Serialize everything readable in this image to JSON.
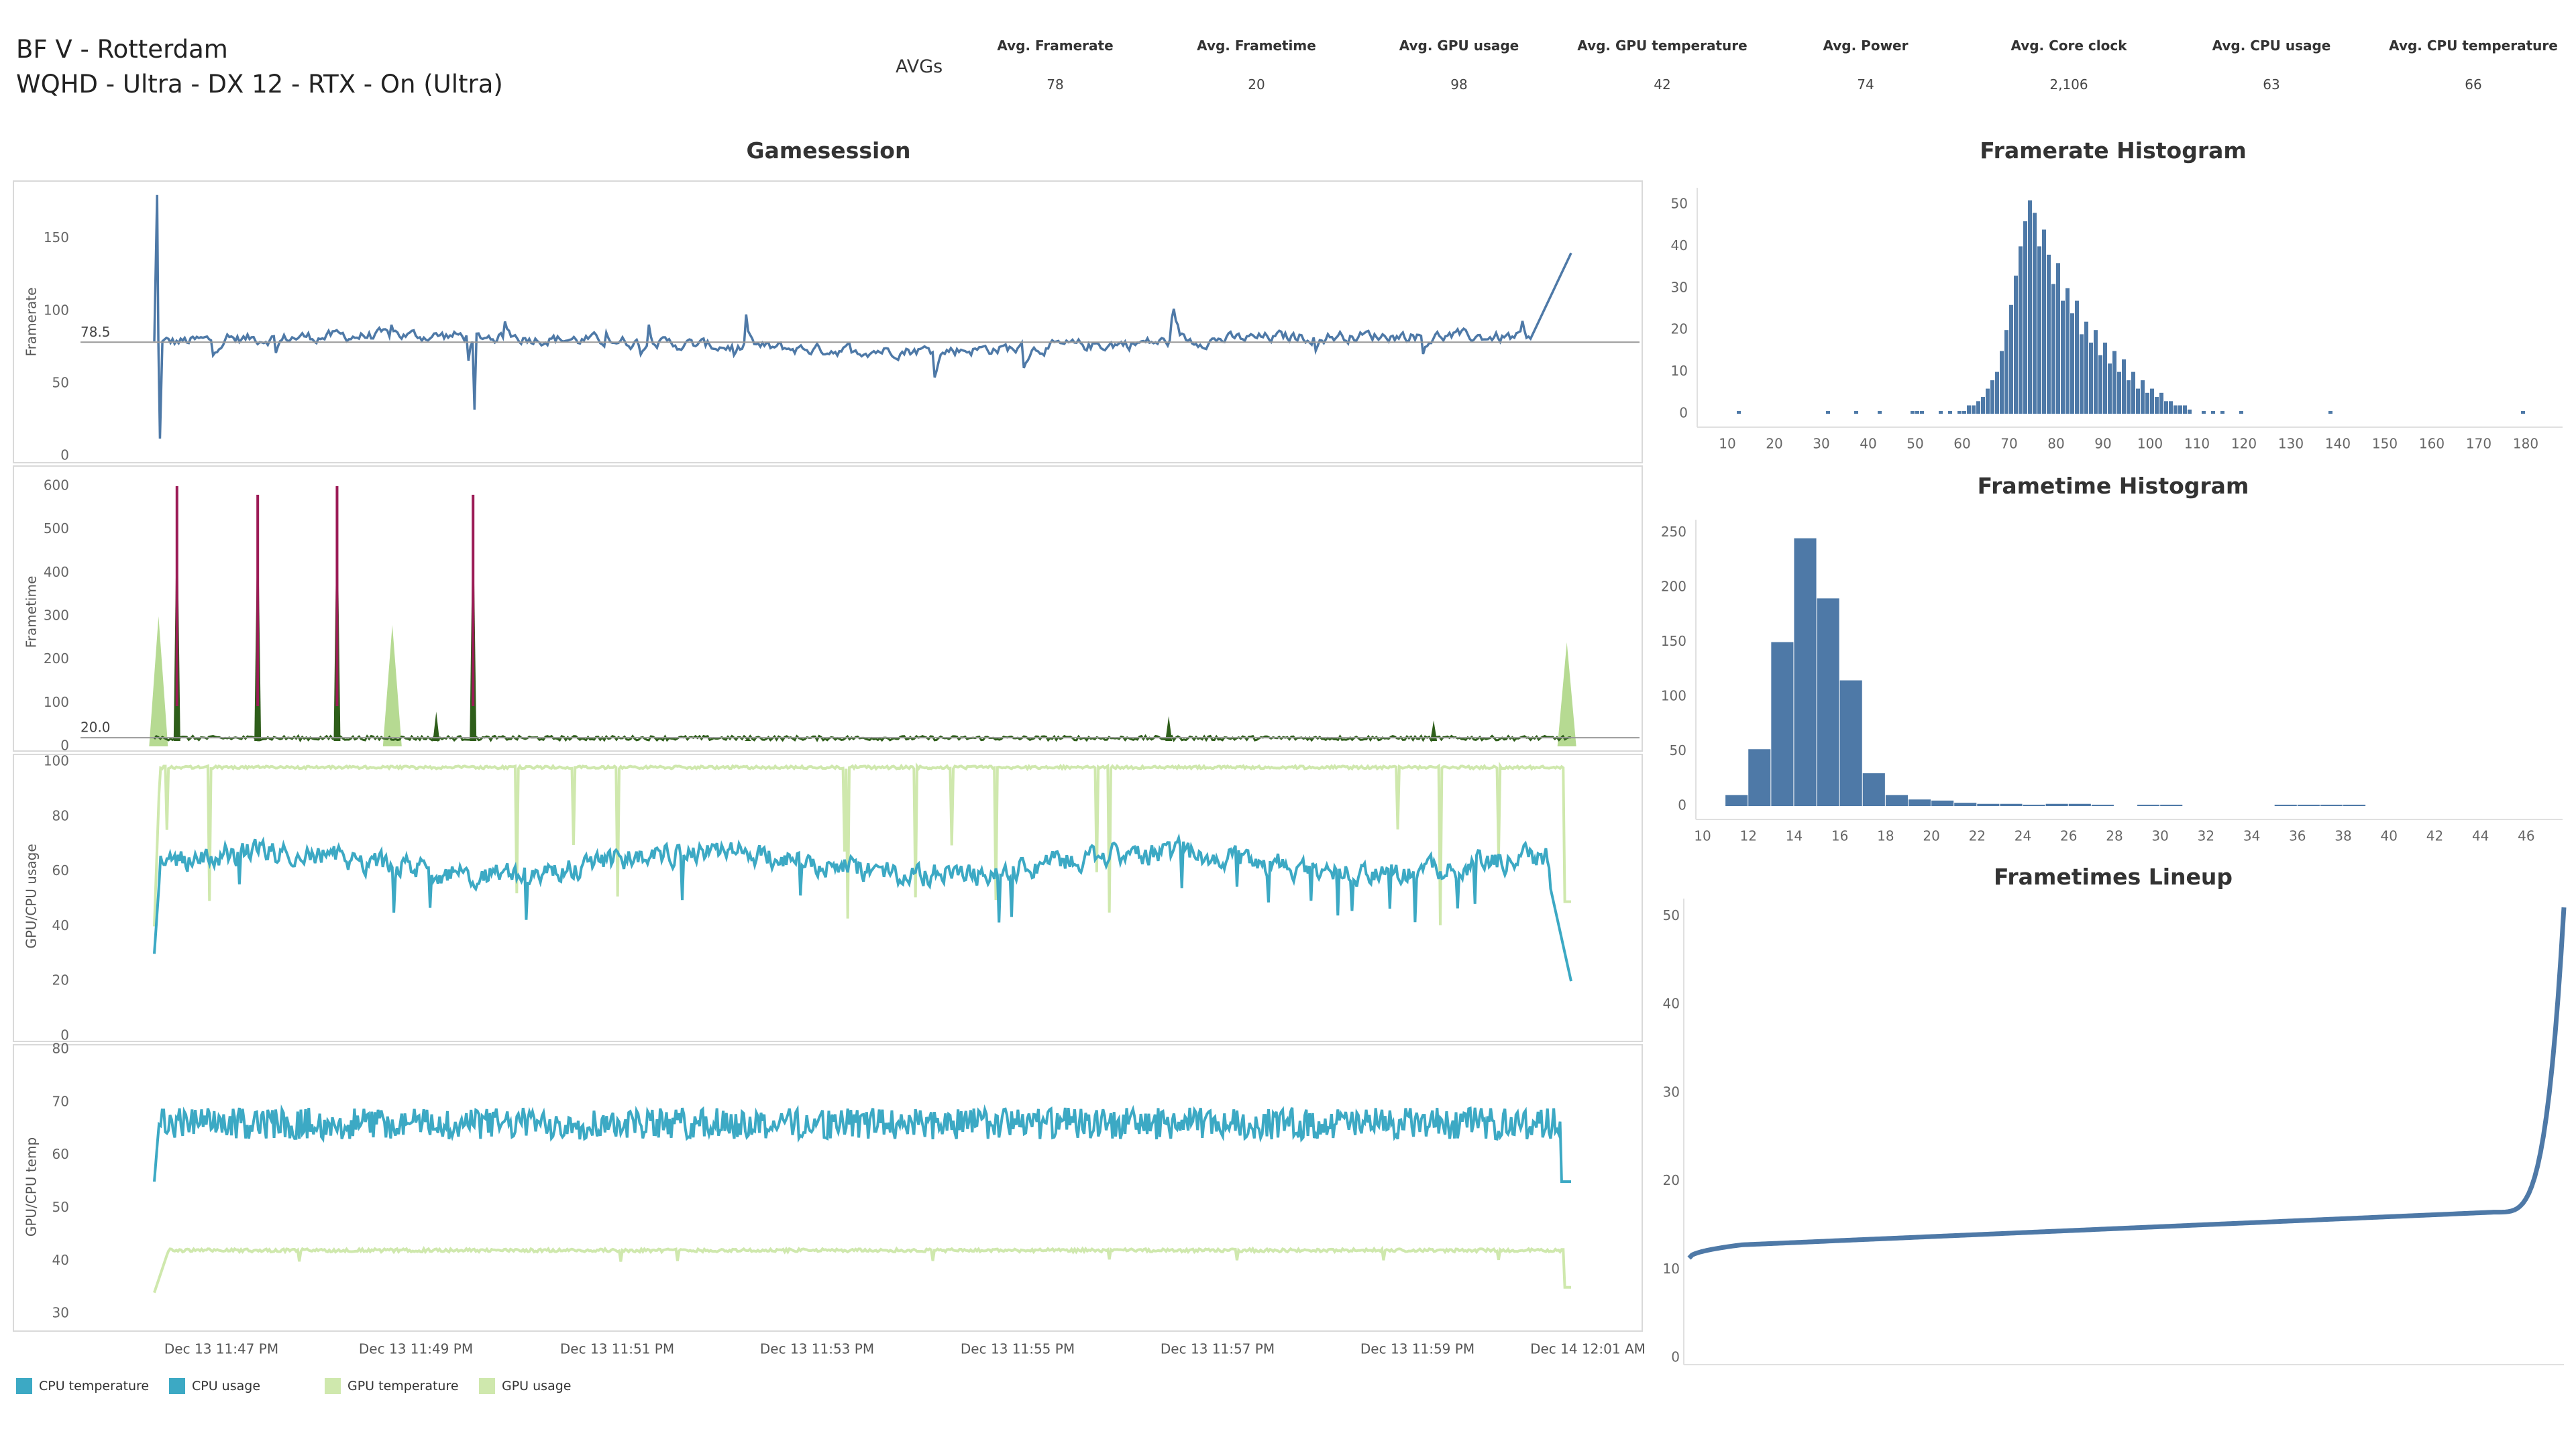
{
  "header": {
    "title_line1": "BF V - Rotterdam",
    "title_line2": "WQHD - Ultra - DX 12 - RTX - On (Ultra)",
    "avgs_label": "AVGs",
    "avgs": [
      {
        "label": "Avg. Framerate",
        "value": "78"
      },
      {
        "label": "Avg. Frametime",
        "value": "20"
      },
      {
        "label": "Avg. GPU usage",
        "value": "98"
      },
      {
        "label": "Avg. GPU temperature",
        "value": "42"
      },
      {
        "label": "Avg. Power",
        "value": "74"
      },
      {
        "label": "Avg. Core clock",
        "value": "2,106"
      },
      {
        "label": "Avg. CPU usage",
        "value": "63"
      },
      {
        "label": "Avg. CPU temperature",
        "value": "66"
      }
    ]
  },
  "titles": {
    "gamesession": "Gamesession",
    "framerate_histogram": "Framerate Histogram",
    "frametime_histogram": "Frametime Histogram",
    "frametimes_lineup": "Frametimes Lineup"
  },
  "colors": {
    "framerate": "#4e79a7",
    "frametime_main": "#2e5e1a",
    "frametime_spike": "#9c1b56",
    "frametime_fill": "#a9d37f",
    "cpu": "#3ca9c4",
    "gpu": "#cfe8ad",
    "histogram": "#4e79a7",
    "refline": "#999999",
    "grid": "#e6e6e6"
  },
  "legend": [
    {
      "label": "CPU temperature",
      "color": "#3ca9c4"
    },
    {
      "label": "CPU usage",
      "color": "#3ca9c4"
    },
    {
      "label": "GPU temperature",
      "color": "#cfe8ad"
    },
    {
      "label": "GPU usage",
      "color": "#cfe8ad"
    }
  ],
  "chart_data": [
    {
      "type": "line",
      "id": "framerate",
      "title": "Gamesession",
      "ylabel": "Framerate",
      "ylim": [
        0,
        185
      ],
      "yticks": [
        0,
        50,
        100,
        150
      ],
      "reference_line": {
        "value": 78.5,
        "label": "78.5"
      },
      "series": [
        {
          "name": "Framerate",
          "baseline": 78,
          "noise": 8,
          "min": 12,
          "max": 180,
          "end_value": 140
        }
      ],
      "spikes": [
        {
          "t": 0.002,
          "value": 180
        },
        {
          "t": 0.004,
          "value": 12
        },
        {
          "t": 0.226,
          "value": 32
        }
      ]
    },
    {
      "type": "area",
      "id": "frametime",
      "ylabel": "Frametime",
      "ylim": [
        0,
        620
      ],
      "yticks": [
        0,
        100,
        200,
        300,
        400,
        500,
        600
      ],
      "reference_line": {
        "value": 20.0,
        "label": "20.0"
      },
      "spikes": [
        {
          "t": 0.016,
          "value": 600,
          "kind": "spike"
        },
        {
          "t": 0.073,
          "value": 580,
          "kind": "spike"
        },
        {
          "t": 0.129,
          "value": 600,
          "kind": "spike"
        },
        {
          "t": 0.225,
          "value": 580,
          "kind": "spike"
        },
        {
          "t": 0.003,
          "value": 300,
          "kind": "fill"
        },
        {
          "t": 0.168,
          "value": 280,
          "kind": "fill"
        },
        {
          "t": 0.997,
          "value": 240,
          "kind": "fill"
        },
        {
          "t": 0.199,
          "value": 80,
          "kind": "minor"
        },
        {
          "t": 0.716,
          "value": 70,
          "kind": "minor"
        },
        {
          "t": 0.903,
          "value": 60,
          "kind": "minor"
        },
        {
          "t": 0.419,
          "value": 20,
          "kind": "minor"
        }
      ]
    },
    {
      "type": "line",
      "id": "usage",
      "ylabel": "GPU/CPU usage",
      "ylim": [
        0,
        102
      ],
      "yticks": [
        0,
        20,
        40,
        60,
        80,
        100
      ],
      "series": [
        {
          "name": "GPU usage",
          "baseline": 98,
          "noise": 1,
          "end_value": 49
        },
        {
          "name": "CPU usage",
          "baseline": 63,
          "noise": 7,
          "end_value": 20
        }
      ]
    },
    {
      "type": "line",
      "id": "temp",
      "ylabel": "GPU/CPU temp",
      "ylim": [
        28,
        80
      ],
      "yticks": [
        30,
        40,
        50,
        60,
        70,
        80
      ],
      "series": [
        {
          "name": "CPU temperature",
          "baseline": 66,
          "noise": 3,
          "end_value": 55
        },
        {
          "name": "GPU temperature",
          "baseline": 42,
          "noise": 0.6,
          "end_value": 35
        }
      ],
      "xticks": [
        "Dec 13 11:47 PM",
        "Dec 13 11:49 PM",
        "Dec 13 11:51 PM",
        "Dec 13 11:53 PM",
        "Dec 13 11:55 PM",
        "Dec 13 11:57 PM",
        "Dec 13 11:59 PM",
        "Dec 14 12:01 AM"
      ]
    },
    {
      "type": "bar",
      "id": "fr_hist",
      "title": "Framerate Histogram",
      "xlim": [
        5,
        185
      ],
      "xticks": [
        10,
        20,
        30,
        40,
        50,
        60,
        70,
        80,
        90,
        100,
        110,
        120,
        130,
        140,
        150,
        160,
        170,
        180
      ],
      "ylim": [
        0,
        54
      ],
      "yticks": [
        0,
        10,
        20,
        30,
        40,
        50
      ],
      "bin_start": 61,
      "bin_width": 1,
      "values": [
        2,
        2,
        3,
        4,
        6,
        8,
        10,
        15,
        20,
        26,
        33,
        40,
        46,
        51,
        48,
        40,
        44,
        38,
        31,
        36,
        27,
        30,
        24,
        27,
        19,
        22,
        17,
        20,
        14,
        17,
        12,
        15,
        10,
        13,
        8,
        10,
        6,
        8,
        5,
        6,
        4,
        5,
        3,
        3,
        2,
        2,
        2,
        1
      ],
      "outliers": [
        {
          "x": 12,
          "value": 1
        },
        {
          "x": 31,
          "value": 1
        },
        {
          "x": 37,
          "value": 1
        },
        {
          "x": 42,
          "value": 1
        },
        {
          "x": 49,
          "value": 1
        },
        {
          "x": 50,
          "value": 1
        },
        {
          "x": 51,
          "value": 1
        },
        {
          "x": 55,
          "value": 1
        },
        {
          "x": 57,
          "value": 1
        },
        {
          "x": 59,
          "value": 1
        },
        {
          "x": 60,
          "value": 1
        },
        {
          "x": 111,
          "value": 1
        },
        {
          "x": 113,
          "value": 1
        },
        {
          "x": 115,
          "value": 1
        },
        {
          "x": 119,
          "value": 1
        },
        {
          "x": 138,
          "value": 1
        },
        {
          "x": 179,
          "value": 1
        }
      ]
    },
    {
      "type": "bar",
      "id": "ft_hist",
      "title": "Frametime Histogram",
      "xlim": [
        10,
        47
      ],
      "xticks": [
        10,
        12,
        14,
        16,
        18,
        20,
        22,
        24,
        26,
        28,
        30,
        32,
        34,
        36,
        38,
        40,
        42,
        44,
        46
      ],
      "ylim": [
        0,
        262
      ],
      "yticks": [
        0,
        50,
        100,
        150,
        200,
        250
      ],
      "bin_start": 11,
      "bin_width": 1,
      "values": [
        10,
        52,
        150,
        245,
        190,
        115,
        30,
        10,
        6,
        5,
        3,
        2,
        2,
        1,
        2,
        2,
        1,
        0,
        1,
        1,
        0,
        0,
        0,
        0,
        1,
        1,
        1,
        1,
        0,
        0,
        0,
        0,
        0,
        0,
        0
      ],
      "tail_max": 46
    },
    {
      "type": "line",
      "id": "lineup",
      "title": "Frametimes Lineup",
      "ylim": [
        0,
        52
      ],
      "yticks": [
        0,
        10,
        20,
        30,
        40,
        50
      ],
      "series": [
        {
          "name": "Frametime (sorted)",
          "start": 11.3,
          "knee": 16.5,
          "end": 51
        }
      ]
    }
  ]
}
